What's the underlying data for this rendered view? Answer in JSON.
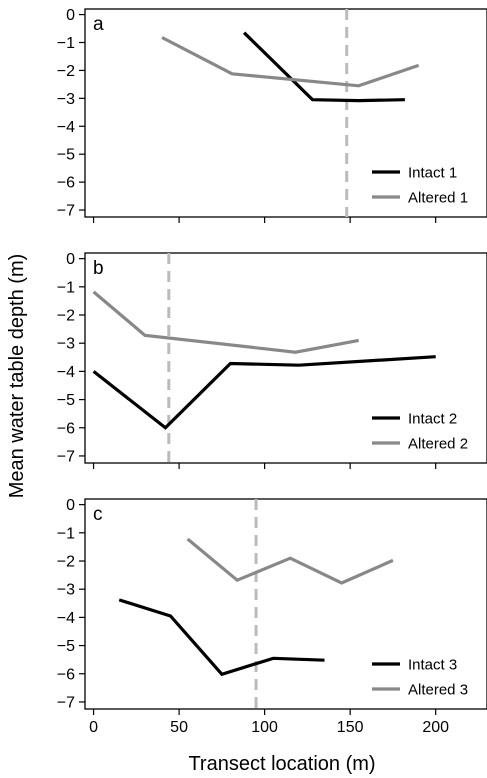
{
  "figure": {
    "ylabel": "Mean water table depth (m)",
    "xlabel": "Transect location (m)"
  },
  "chart_data": [
    {
      "type": "line",
      "panel_label": "a",
      "xlim": [
        -5,
        230
      ],
      "ylim": [
        -7.25,
        0.2
      ],
      "x_ticks": [
        0,
        50,
        100,
        150,
        200
      ],
      "y_ticks": [
        0,
        -1,
        -2,
        -3,
        -4,
        -5,
        -6,
        -7
      ],
      "y_tick_labels": [
        "0",
        "−1",
        "−2",
        "−3",
        "−4",
        "−5",
        "−6",
        "−7"
      ],
      "vline_x": 148,
      "legend_position": "bottom-right",
      "series": [
        {
          "name": "Intact 1",
          "color": "#000000",
          "x": [
            88,
            128,
            155,
            182
          ],
          "y": [
            -0.65,
            -3.05,
            -3.08,
            -3.05
          ]
        },
        {
          "name": "Altered 1",
          "color": "#888888",
          "x": [
            40,
            81,
            155,
            190
          ],
          "y": [
            -0.82,
            -2.12,
            -2.55,
            -1.82
          ]
        }
      ]
    },
    {
      "type": "line",
      "panel_label": "b",
      "xlim": [
        -5,
        230
      ],
      "ylim": [
        -7.25,
        0.2
      ],
      "x_ticks": [
        0,
        50,
        100,
        150,
        200
      ],
      "y_ticks": [
        0,
        -1,
        -2,
        -3,
        -4,
        -5,
        -6,
        -7
      ],
      "y_tick_labels": [
        "0",
        "−1",
        "−2",
        "−3",
        "−4",
        "−5",
        "−6",
        "−7"
      ],
      "vline_x": 44,
      "legend_position": "bottom-right",
      "series": [
        {
          "name": "Intact 2",
          "color": "#000000",
          "x": [
            0,
            42,
            80,
            120,
            200
          ],
          "y": [
            -4.0,
            -6.0,
            -3.72,
            -3.78,
            -3.48
          ]
        },
        {
          "name": "Altered 2",
          "color": "#888888",
          "x": [
            0,
            30,
            118,
            155
          ],
          "y": [
            -1.18,
            -2.72,
            -3.32,
            -2.9
          ]
        }
      ]
    },
    {
      "type": "line",
      "panel_label": "c",
      "xlim": [
        -5,
        230
      ],
      "ylim": [
        -7.25,
        0.2
      ],
      "x_ticks": [
        0,
        50,
        100,
        150,
        200
      ],
      "x_tick_labels": [
        "0",
        "50",
        "100",
        "150",
        "200"
      ],
      "y_ticks": [
        0,
        -1,
        -2,
        -3,
        -4,
        -5,
        -6,
        -7
      ],
      "y_tick_labels": [
        "0",
        "−1",
        "−2",
        "−3",
        "−4",
        "−5",
        "−6",
        "−7"
      ],
      "vline_x": 95,
      "legend_position": "bottom-right",
      "series": [
        {
          "name": "Intact 3",
          "color": "#000000",
          "x": [
            15,
            45,
            75,
            105,
            135
          ],
          "y": [
            -3.38,
            -3.95,
            -6.02,
            -5.45,
            -5.52
          ]
        },
        {
          "name": "Altered 3",
          "color": "#888888",
          "x": [
            55,
            84,
            115,
            145,
            175
          ],
          "y": [
            -1.22,
            -2.68,
            -1.9,
            -2.78,
            -1.98
          ]
        }
      ]
    }
  ]
}
